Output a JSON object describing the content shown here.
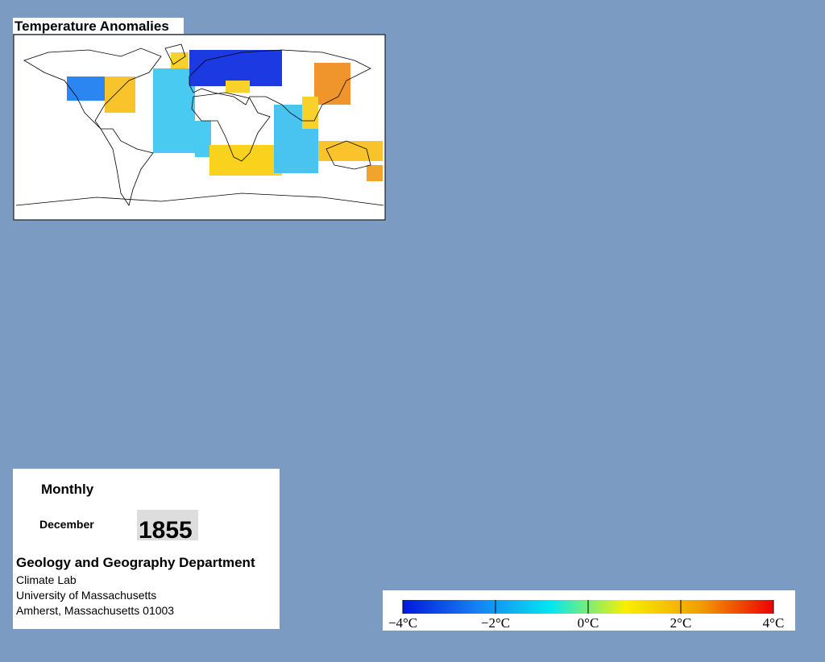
{
  "title": "Temperature Anomalies",
  "panel": {
    "frequency": "Monthly",
    "month": "December",
    "year": "1855",
    "department": "Geology and Geography Department",
    "lines": [
      "Climate Lab",
      "University of Massachusetts",
      "Amherst, Massachusetts 01003"
    ]
  },
  "colorbar": {
    "lim": [
      -4,
      4
    ],
    "ticks": [
      {
        "value": -4,
        "label": "−4°C"
      },
      {
        "value": -2,
        "label": "−2°C"
      },
      {
        "value": 0,
        "label": "0°C"
      },
      {
        "value": 2,
        "label": "2°C"
      },
      {
        "value": 4,
        "label": "4°C"
      }
    ],
    "colors": [
      "#0018e0",
      "#1880f0",
      "#00e8f0",
      "#f8f000",
      "#f0a000",
      "#f00000"
    ]
  }
}
